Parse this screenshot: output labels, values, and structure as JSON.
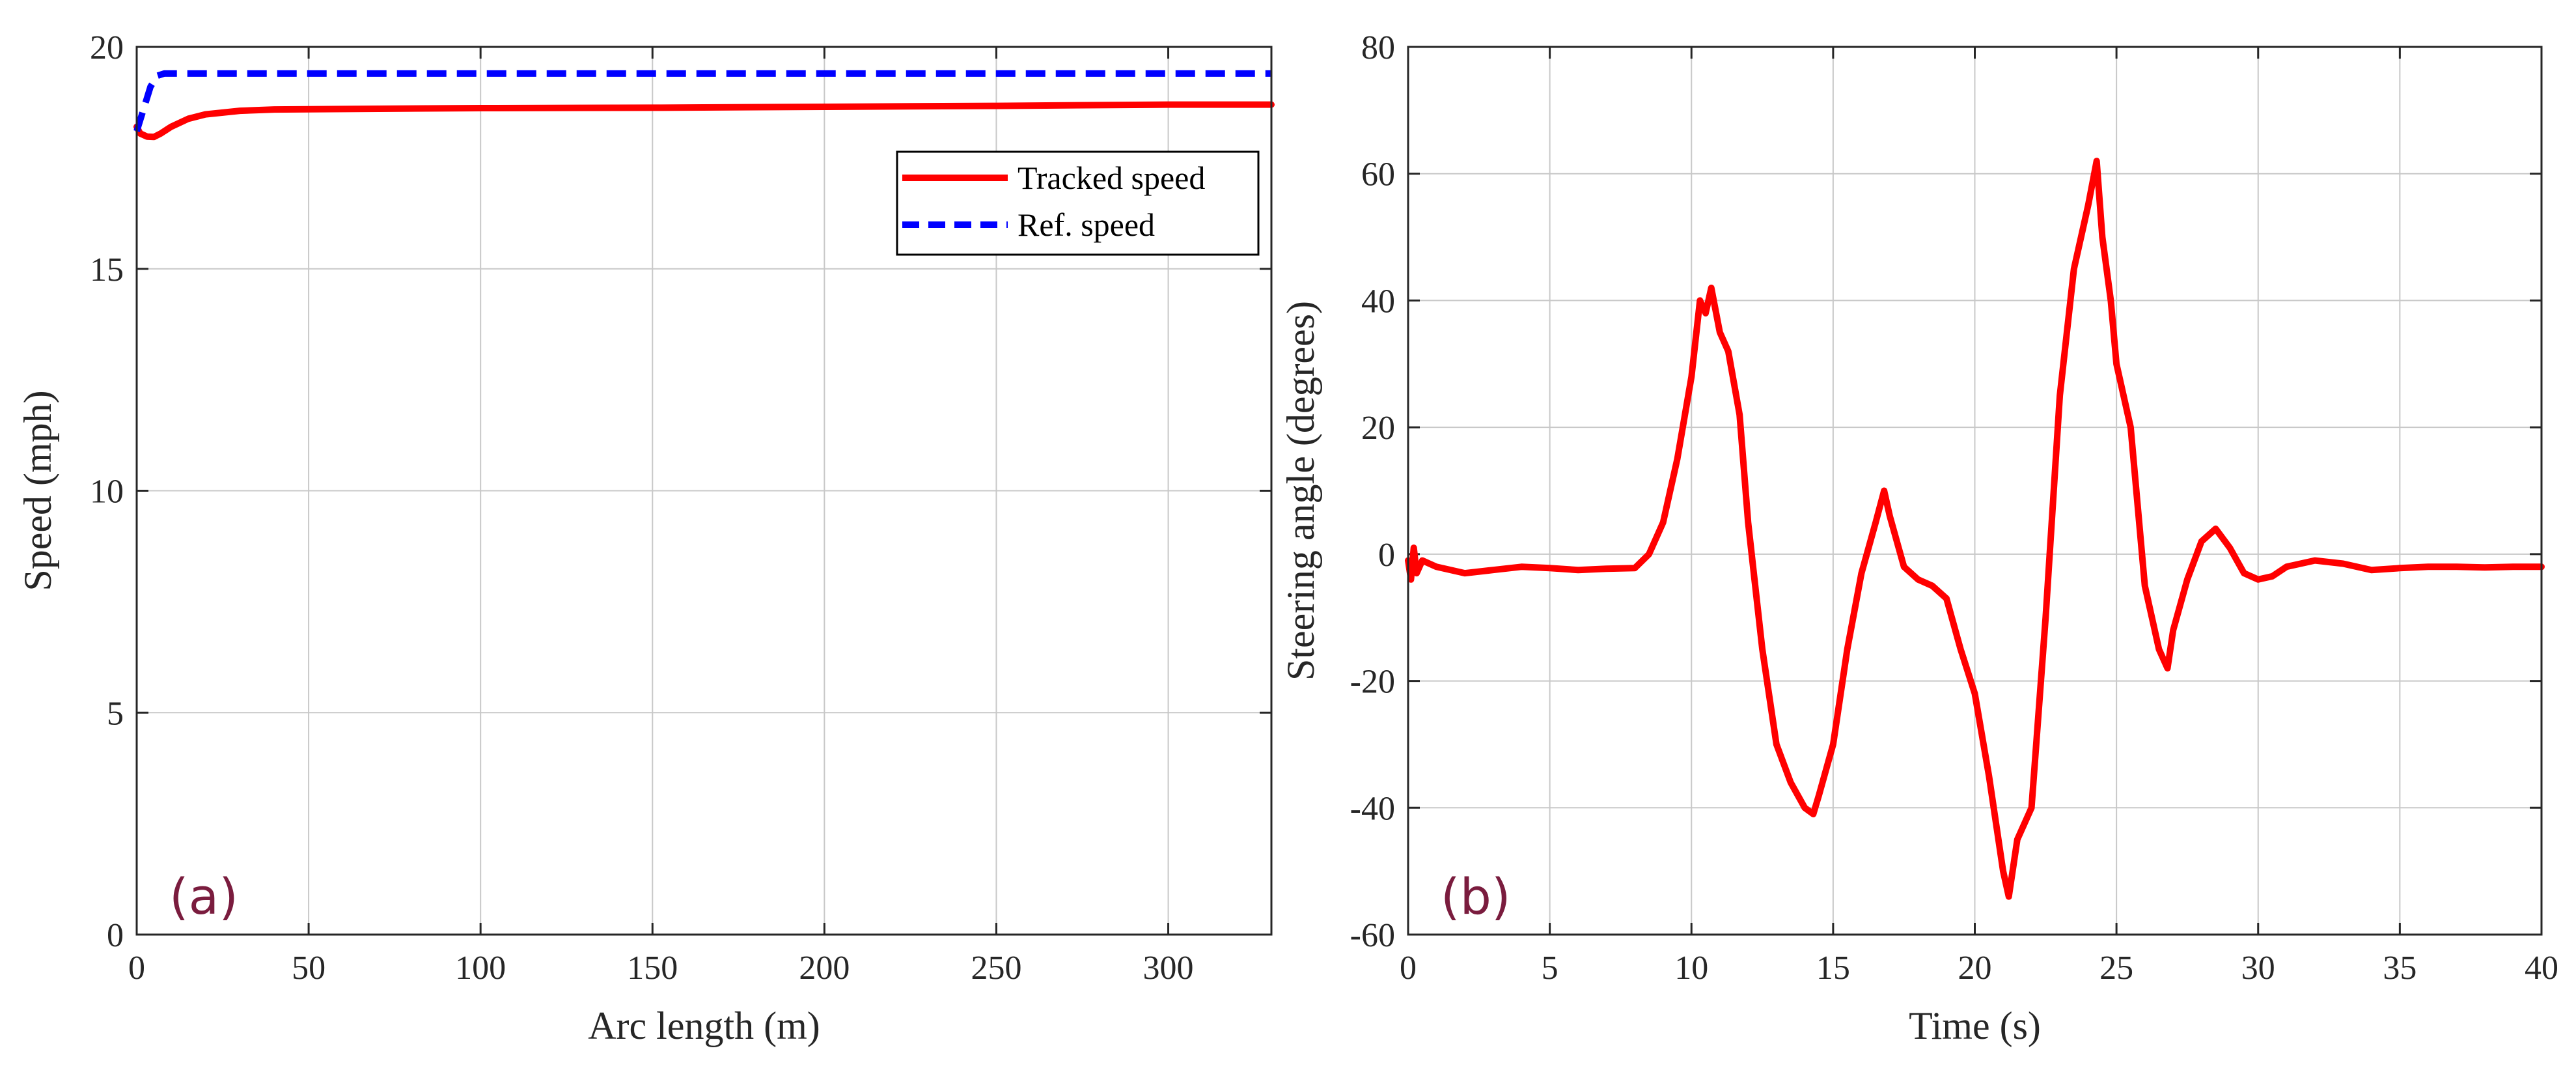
{
  "chart_data": [
    {
      "type": "line",
      "panel_label": "(a)",
      "xlabel": "Arc length (m)",
      "ylabel": "Speed (mph)",
      "xlim": [
        0,
        330
      ],
      "ylim": [
        0,
        20
      ],
      "xticks": [
        0,
        50,
        100,
        150,
        200,
        250,
        300
      ],
      "yticks": [
        0,
        5,
        10,
        15,
        20
      ],
      "grid": true,
      "legend_position": "top-right",
      "series": [
        {
          "name": "Tracked speed",
          "color": "#ff0000",
          "style": "solid",
          "x": [
            0,
            1,
            3,
            5,
            7,
            10,
            15,
            20,
            30,
            40,
            60,
            100,
            150,
            200,
            250,
            300,
            330
          ],
          "y": [
            18.2,
            18.05,
            17.98,
            17.97,
            18.05,
            18.2,
            18.38,
            18.48,
            18.56,
            18.59,
            18.6,
            18.62,
            18.63,
            18.65,
            18.67,
            18.7,
            18.7
          ]
        },
        {
          "name": "Ref. speed",
          "color": "#0000ff",
          "style": "dashed",
          "x": [
            0,
            2,
            4,
            6,
            8,
            330
          ],
          "y": [
            18.1,
            18.6,
            19.1,
            19.35,
            19.4,
            19.4
          ]
        }
      ]
    },
    {
      "type": "line",
      "panel_label": "(b)",
      "xlabel": "Time (s)",
      "ylabel": "Steering angle (degrees)",
      "xlim": [
        0,
        40
      ],
      "ylim": [
        -60,
        80
      ],
      "xticks": [
        0,
        5,
        10,
        15,
        20,
        25,
        30,
        35,
        40
      ],
      "yticks": [
        -60,
        -40,
        -20,
        0,
        20,
        40,
        60,
        80
      ],
      "grid": true,
      "series": [
        {
          "name": "Steering angle",
          "color": "#ff0000",
          "style": "solid",
          "x": [
            0,
            0.1,
            0.2,
            0.3,
            0.5,
            1,
            2,
            3,
            4,
            5,
            6,
            7,
            8,
            8.5,
            9,
            9.5,
            10,
            10.3,
            10.5,
            10.7,
            11,
            11.3,
            11.7,
            12,
            12.5,
            13,
            13.5,
            14,
            14.3,
            14.5,
            15,
            15.5,
            16,
            16.5,
            16.8,
            17,
            17.5,
            18,
            18.5,
            19,
            19.5,
            20,
            20.5,
            21,
            21.2,
            21.5,
            22,
            22.5,
            23,
            23.5,
            24,
            24.3,
            24.5,
            24.8,
            25,
            25.5,
            26,
            26.5,
            26.8,
            27,
            27.5,
            28,
            28.5,
            29,
            29.5,
            30,
            30.5,
            31,
            32,
            33,
            34,
            35,
            36,
            37,
            38,
            39,
            40
          ],
          "y": [
            -1,
            -4,
            1,
            -3,
            -1,
            -2,
            -3,
            -2.5,
            -2,
            -2.2,
            -2.5,
            -2.3,
            -2.2,
            0,
            5,
            15,
            28,
            40,
            38,
            42,
            35,
            32,
            22,
            5,
            -15,
            -30,
            -36,
            -40,
            -41,
            -38,
            -30,
            -15,
            -3,
            5,
            10,
            6,
            -2,
            -4,
            -5,
            -7,
            -15,
            -22,
            -35,
            -50,
            -54,
            -45,
            -40,
            -10,
            25,
            45,
            55,
            62,
            50,
            40,
            30,
            20,
            -5,
            -15,
            -18,
            -12,
            -4,
            2,
            4,
            1,
            -3,
            -4,
            -3.5,
            -2,
            -1,
            -1.5,
            -2.5,
            -2.2,
            -2,
            -2,
            -2.1,
            -2,
            -2
          ]
        }
      ]
    }
  ]
}
